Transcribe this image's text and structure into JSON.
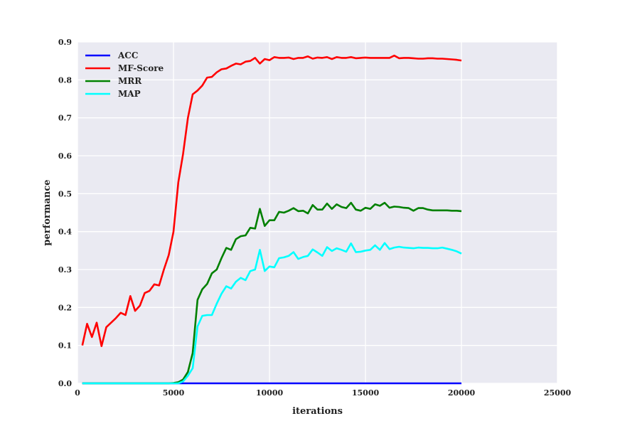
{
  "chart_data": {
    "type": "line",
    "title": "",
    "xlabel": "iterations",
    "ylabel": "performance",
    "xlim": [
      0,
      25000
    ],
    "ylim": [
      0.0,
      0.9
    ],
    "xticks": [
      0,
      5000,
      10000,
      15000,
      20000,
      25000
    ],
    "yticks": [
      0.0,
      0.1,
      0.2,
      0.3,
      0.4,
      0.5,
      0.6,
      0.7,
      0.8,
      0.9
    ],
    "xtick_labels": [
      "0",
      "5000",
      "10000",
      "15000",
      "20000",
      "25000"
    ],
    "ytick_labels": [
      "0.0",
      "0.1",
      "0.2",
      "0.3",
      "0.4",
      "0.5",
      "0.6",
      "0.7",
      "0.8",
      "0.9"
    ],
    "grid": true,
    "legend_position": "top-left",
    "background": "#eaeaf2",
    "series": [
      {
        "name": "ACC",
        "color": "#0000ff",
        "x": [
          250,
          500,
          750,
          1000,
          1250,
          1500,
          1750,
          2000,
          2250,
          2500,
          2750,
          3000,
          3250,
          3500,
          3750,
          4000,
          4250,
          4500,
          4750,
          5000,
          5250,
          5500,
          5750,
          6000,
          6250,
          6500,
          6750,
          7000,
          7250,
          7500,
          7750,
          8000,
          8250,
          8500,
          8750,
          9000,
          9250,
          9500,
          9750,
          10000,
          10250,
          10500,
          10750,
          11000,
          11250,
          11500,
          11750,
          12000,
          12250,
          12500,
          12750,
          13000,
          13250,
          13500,
          13750,
          14000,
          14250,
          14500,
          14750,
          15000,
          15250,
          15500,
          15750,
          16000,
          16250,
          16500,
          16750,
          17000,
          17250,
          17500,
          17750,
          18000,
          18250,
          18500,
          18750,
          19000,
          19250,
          19500,
          19750,
          20000
        ],
        "y": [
          0.0,
          0.0,
          0.0,
          0.0,
          0.0,
          0.0,
          0.0,
          0.0,
          0.0,
          0.0,
          0.0,
          0.0,
          0.0,
          0.0,
          0.0,
          0.0,
          0.0,
          0.0,
          0.0,
          0.0,
          0.0,
          0.0,
          0.0,
          0.0,
          0.0,
          0.0,
          0.0,
          0.0,
          0.0,
          0.0,
          0.0,
          0.0,
          0.0,
          0.0,
          0.0,
          0.0,
          0.0,
          0.0,
          0.0,
          0.0,
          0.0,
          0.0,
          0.0,
          0.0,
          0.0,
          0.0,
          0.0,
          0.0,
          0.0,
          0.0,
          0.0,
          0.0,
          0.0,
          0.0,
          0.0,
          0.0,
          0.0,
          0.0,
          0.0,
          0.0,
          0.0,
          0.0,
          0.0,
          0.0,
          0.0,
          0.0,
          0.0,
          0.0,
          0.0,
          0.0,
          0.0,
          0.0,
          0.0,
          0.0,
          0.0,
          0.0,
          0.0,
          0.0,
          0.0,
          0.0
        ]
      },
      {
        "name": "MF-Score",
        "color": "#ff0000",
        "x": [
          250,
          500,
          750,
          1000,
          1250,
          1500,
          1750,
          2000,
          2250,
          2500,
          2750,
          3000,
          3250,
          3500,
          3750,
          4000,
          4250,
          4500,
          4750,
          5000,
          5250,
          5500,
          5750,
          6000,
          6250,
          6500,
          6750,
          7000,
          7250,
          7500,
          7750,
          8000,
          8250,
          8500,
          8750,
          9000,
          9250,
          9500,
          9750,
          10000,
          10250,
          10500,
          10750,
          11000,
          11250,
          11500,
          11750,
          12000,
          12250,
          12500,
          12750,
          13000,
          13250,
          13500,
          13750,
          14000,
          14250,
          14500,
          14750,
          15000,
          15250,
          15500,
          15750,
          16000,
          16250,
          16500,
          16750,
          17000,
          17250,
          17500,
          17750,
          18000,
          18250,
          18500,
          18750,
          19000,
          19250,
          19500,
          19750,
          20000
        ],
        "y": [
          0.1,
          0.157,
          0.122,
          0.16,
          0.098,
          0.148,
          0.16,
          0.172,
          0.186,
          0.18,
          0.23,
          0.191,
          0.205,
          0.238,
          0.244,
          0.261,
          0.258,
          0.3,
          0.338,
          0.4,
          0.53,
          0.605,
          0.7,
          0.762,
          0.772,
          0.785,
          0.806,
          0.808,
          0.82,
          0.828,
          0.83,
          0.837,
          0.843,
          0.841,
          0.848,
          0.85,
          0.858,
          0.843,
          0.855,
          0.852,
          0.86,
          0.858,
          0.858,
          0.859,
          0.855,
          0.858,
          0.858,
          0.862,
          0.856,
          0.859,
          0.858,
          0.86,
          0.855,
          0.86,
          0.858,
          0.858,
          0.86,
          0.857,
          0.858,
          0.859,
          0.858,
          0.858,
          0.858,
          0.858,
          0.858,
          0.864,
          0.857,
          0.858,
          0.858,
          0.857,
          0.856,
          0.856,
          0.857,
          0.857,
          0.856,
          0.856,
          0.855,
          0.854,
          0.853,
          0.851
        ]
      },
      {
        "name": "MRR",
        "color": "#008000",
        "x": [
          250,
          500,
          750,
          1000,
          1250,
          1500,
          1750,
          2000,
          2250,
          2500,
          2750,
          3000,
          3250,
          3500,
          3750,
          4000,
          4250,
          4500,
          4750,
          5000,
          5250,
          5500,
          5750,
          6000,
          6250,
          6500,
          6750,
          7000,
          7250,
          7500,
          7750,
          8000,
          8250,
          8500,
          8750,
          9000,
          9250,
          9500,
          9750,
          10000,
          10250,
          10500,
          10750,
          11000,
          11250,
          11500,
          11750,
          12000,
          12250,
          12500,
          12750,
          13000,
          13250,
          13500,
          13750,
          14000,
          14250,
          14500,
          14750,
          15000,
          15250,
          15500,
          15750,
          16000,
          16250,
          16500,
          16750,
          17000,
          17250,
          17500,
          17750,
          18000,
          18250,
          18500,
          18750,
          19000,
          19250,
          19500,
          19750,
          20000
        ],
        "y": [
          0.0,
          0.0,
          0.0,
          0.0,
          0.0,
          0.0,
          0.0,
          0.0,
          0.0,
          0.0,
          0.0,
          0.0,
          0.0,
          0.0,
          0.0,
          0.0,
          0.0,
          0.0,
          0.0,
          0.001,
          0.003,
          0.01,
          0.03,
          0.08,
          0.22,
          0.248,
          0.262,
          0.29,
          0.3,
          0.33,
          0.357,
          0.352,
          0.38,
          0.388,
          0.39,
          0.41,
          0.408,
          0.46,
          0.415,
          0.43,
          0.43,
          0.452,
          0.45,
          0.455,
          0.462,
          0.454,
          0.455,
          0.448,
          0.47,
          0.458,
          0.458,
          0.474,
          0.46,
          0.472,
          0.465,
          0.462,
          0.476,
          0.458,
          0.455,
          0.463,
          0.46,
          0.472,
          0.468,
          0.476,
          0.463,
          0.466,
          0.465,
          0.463,
          0.462,
          0.455,
          0.462,
          0.462,
          0.458,
          0.456,
          0.456,
          0.456,
          0.456,
          0.455,
          0.455,
          0.454
        ]
      },
      {
        "name": "MAP",
        "color": "#00ffff",
        "x": [
          250,
          500,
          750,
          1000,
          1250,
          1500,
          1750,
          2000,
          2250,
          2500,
          2750,
          3000,
          3250,
          3500,
          3750,
          4000,
          4250,
          4500,
          4750,
          5000,
          5250,
          5500,
          5750,
          6000,
          6250,
          6500,
          6750,
          7000,
          7250,
          7500,
          7750,
          8000,
          8250,
          8500,
          8750,
          9000,
          9250,
          9500,
          9750,
          10000,
          10250,
          10500,
          10750,
          11000,
          11250,
          11500,
          11750,
          12000,
          12250,
          12500,
          12750,
          13000,
          13250,
          13500,
          13750,
          14000,
          14250,
          14500,
          14750,
          15000,
          15250,
          15500,
          15750,
          16000,
          16250,
          16500,
          16750,
          17000,
          17250,
          17500,
          17750,
          18000,
          18250,
          18500,
          18750,
          19000,
          19250,
          19500,
          19750,
          20000
        ],
        "y": [
          0.0,
          0.0,
          0.0,
          0.0,
          0.0,
          0.0,
          0.0,
          0.0,
          0.0,
          0.0,
          0.0,
          0.0,
          0.0,
          0.0,
          0.0,
          0.0,
          0.0,
          0.0,
          0.0,
          0.0,
          0.0,
          0.005,
          0.02,
          0.04,
          0.15,
          0.178,
          0.18,
          0.18,
          0.21,
          0.236,
          0.256,
          0.25,
          0.268,
          0.278,
          0.272,
          0.296,
          0.3,
          0.352,
          0.296,
          0.308,
          0.306,
          0.33,
          0.332,
          0.336,
          0.346,
          0.328,
          0.333,
          0.336,
          0.353,
          0.345,
          0.336,
          0.359,
          0.349,
          0.356,
          0.352,
          0.347,
          0.369,
          0.346,
          0.347,
          0.35,
          0.352,
          0.364,
          0.352,
          0.37,
          0.354,
          0.358,
          0.36,
          0.358,
          0.357,
          0.356,
          0.358,
          0.357,
          0.357,
          0.356,
          0.356,
          0.358,
          0.355,
          0.352,
          0.348,
          0.342
        ]
      }
    ]
  }
}
